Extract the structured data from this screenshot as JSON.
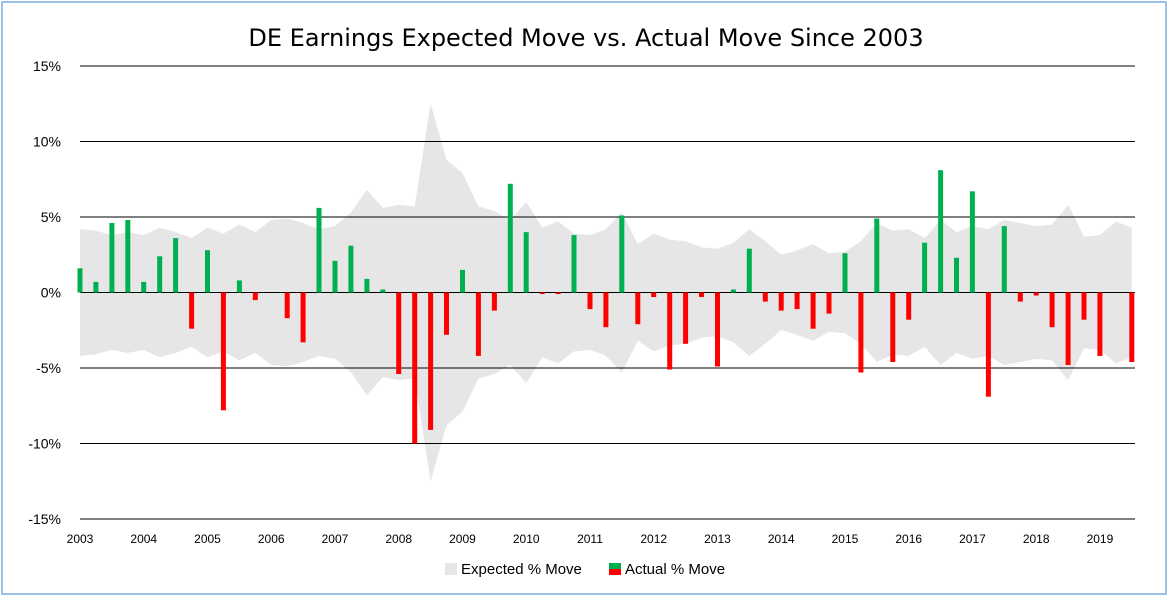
{
  "chart_data": {
    "type": "bar",
    "title": "DE Earnings Expected Move vs. Actual Move Since 2003",
    "ylim": [
      -15,
      15
    ],
    "y_ticks": [
      15,
      10,
      5,
      0,
      -5,
      -10,
      -15
    ],
    "y_tick_labels": [
      "15%",
      "10%",
      "5%",
      "0%",
      "-5%",
      "-10%",
      "-15%"
    ],
    "x_range": [
      2003,
      2019.55
    ],
    "x_tick_years": [
      2003,
      2004,
      2005,
      2006,
      2007,
      2008,
      2009,
      2010,
      2011,
      2012,
      2013,
      2014,
      2015,
      2016,
      2017,
      2018,
      2019
    ],
    "x_tick_labels": [
      "2003",
      "2004",
      "2005",
      "2006",
      "2007",
      "2008",
      "2009",
      "2010",
      "2011",
      "2012",
      "2013",
      "2014",
      "2015",
      "2016",
      "2017",
      "2018",
      "2019"
    ],
    "grid": true,
    "legend_position": "bottom",
    "series": [
      {
        "name": "Expected % Move",
        "kind": "area-band",
        "color": "#e6e6e6",
        "x": [
          2003.0,
          2003.25,
          2003.5,
          2003.75,
          2004.0,
          2004.25,
          2004.5,
          2004.75,
          2005.0,
          2005.25,
          2005.5,
          2005.75,
          2006.0,
          2006.25,
          2006.5,
          2006.75,
          2007.0,
          2007.25,
          2007.5,
          2007.75,
          2008.0,
          2008.25,
          2008.5,
          2008.75,
          2009.0,
          2009.25,
          2009.5,
          2009.75,
          2010.0,
          2010.25,
          2010.5,
          2010.75,
          2011.0,
          2011.25,
          2011.5,
          2011.75,
          2012.0,
          2012.25,
          2012.5,
          2012.75,
          2013.0,
          2013.25,
          2013.5,
          2013.75,
          2014.0,
          2014.25,
          2014.5,
          2014.75,
          2015.0,
          2015.25,
          2015.5,
          2015.75,
          2016.0,
          2016.25,
          2016.5,
          2016.75,
          2017.0,
          2017.25,
          2017.5,
          2017.75,
          2018.0,
          2018.25,
          2018.5,
          2018.75,
          2019.0,
          2019.25,
          2019.5
        ],
        "values": [
          4.2,
          4.1,
          3.8,
          4.0,
          3.8,
          4.3,
          4.0,
          3.6,
          4.3,
          3.9,
          4.5,
          4.0,
          4.8,
          4.9,
          4.6,
          4.2,
          4.4,
          5.3,
          6.8,
          5.6,
          5.8,
          5.7,
          12.5,
          8.8,
          7.9,
          5.7,
          5.4,
          4.8,
          6.0,
          4.3,
          4.7,
          3.9,
          3.8,
          4.2,
          5.3,
          3.2,
          3.9,
          3.5,
          3.4,
          3.0,
          2.9,
          3.3,
          4.2,
          3.4,
          2.5,
          2.8,
          3.2,
          2.6,
          2.7,
          3.4,
          4.6,
          4.1,
          4.2,
          3.6,
          4.8,
          4.0,
          4.4,
          4.2,
          4.8,
          4.6,
          4.4,
          4.5,
          5.8,
          3.7,
          3.8,
          4.7,
          4.3
        ]
      },
      {
        "name": "Actual % Move",
        "kind": "bar",
        "positive_color": "#00b050",
        "negative_color": "#ff0000",
        "x": [
          2003.0,
          2003.25,
          2003.5,
          2003.75,
          2004.0,
          2004.25,
          2004.5,
          2004.75,
          2005.0,
          2005.25,
          2005.5,
          2005.75,
          2006.0,
          2006.25,
          2006.5,
          2006.75,
          2007.0,
          2007.25,
          2007.5,
          2007.75,
          2008.0,
          2008.25,
          2008.5,
          2008.75,
          2009.0,
          2009.25,
          2009.5,
          2009.75,
          2010.0,
          2010.25,
          2010.5,
          2010.75,
          2011.0,
          2011.25,
          2011.5,
          2011.75,
          2012.0,
          2012.25,
          2012.5,
          2012.75,
          2013.0,
          2013.25,
          2013.5,
          2013.75,
          2014.0,
          2014.25,
          2014.5,
          2014.75,
          2015.0,
          2015.25,
          2015.5,
          2015.75,
          2016.0,
          2016.25,
          2016.5,
          2016.75,
          2017.0,
          2017.25,
          2017.5,
          2017.75,
          2018.0,
          2018.25,
          2018.5,
          2018.75,
          2019.0,
          2019.25,
          2019.5
        ],
        "values": [
          1.6,
          0.7,
          4.6,
          4.8,
          0.7,
          2.4,
          3.6,
          -2.4,
          2.8,
          -7.8,
          0.8,
          -0.5,
          0.0,
          -1.7,
          -3.3,
          5.6,
          2.1,
          3.1,
          0.9,
          0.2,
          -5.4,
          -10.0,
          -9.1,
          -2.8,
          1.5,
          -4.2,
          -1.2,
          7.2,
          4.0,
          -0.1,
          -0.1,
          3.8,
          -1.1,
          -2.3,
          5.1,
          -2.1,
          -0.3,
          -5.1,
          -3.4,
          -0.3,
          -4.9,
          0.2,
          2.9,
          -0.6,
          -1.2,
          -1.1,
          -2.4,
          -1.4,
          2.6,
          -5.3,
          4.9,
          -4.6,
          -1.8,
          3.3,
          8.1,
          2.3,
          6.7,
          -6.9,
          4.4,
          -0.6,
          -0.2,
          -2.3,
          -4.8,
          -1.8,
          -4.2,
          0.0,
          -4.6
        ]
      }
    ]
  }
}
